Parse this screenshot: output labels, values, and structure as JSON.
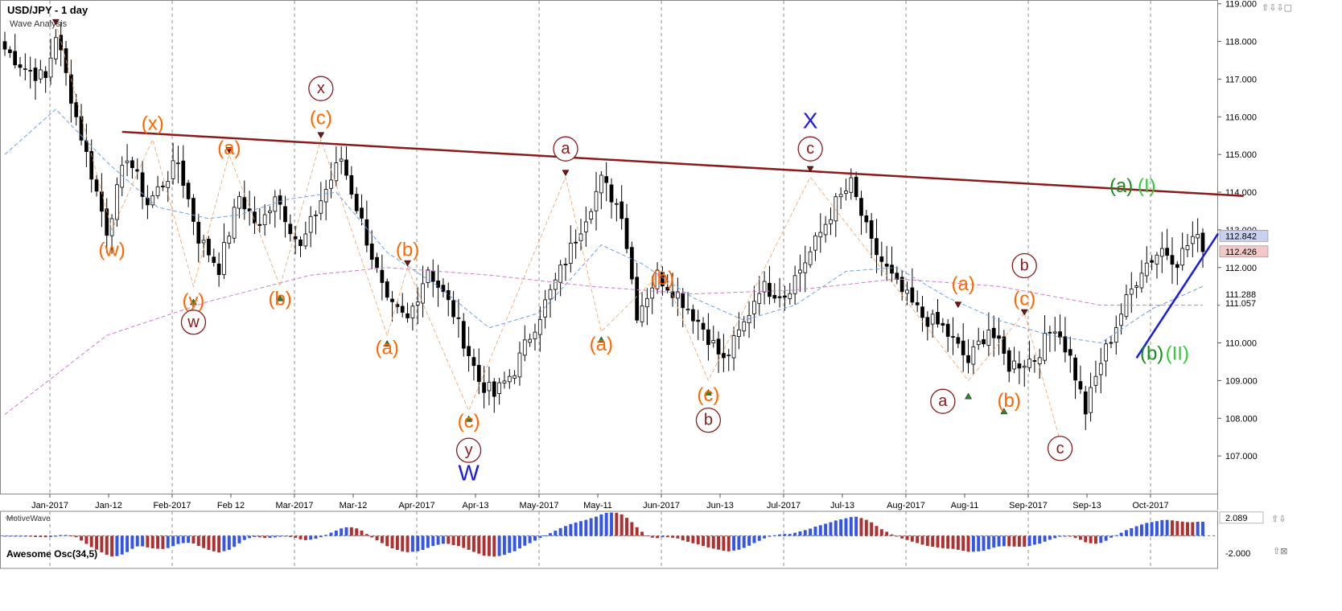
{
  "header": {
    "symbol_title": "USD/JPY - 1 day",
    "subtitle": "Wave Analysis"
  },
  "footer_brand": "MotiveWave",
  "controls": {
    "top_right": "⇧⇩⇩▢",
    "price_panel_bottom": "⇧⇩",
    "osc_panel": "⇧⊠"
  },
  "colors": {
    "bull_candle": "#ffffff",
    "bear_candle": "#000000",
    "ma_fast": "#6a9fe6",
    "ma_slow": "#d07ad0",
    "resistance": "#8b1a1a",
    "support": "#1a1ae6",
    "orange": "#ff6600",
    "darkred": "#8b1a1a",
    "blue": "#1a1ae6",
    "green": "#1a8a1a",
    "lime": "#33cc33"
  },
  "chart_data": {
    "type": "candlestick",
    "title": "USD/JPY - 1 day",
    "ylim": [
      106.0,
      119.1
    ],
    "y_ticks": [
      "107.000",
      "108.000",
      "109.000",
      "110.000",
      "111.000",
      "112.000",
      "113.000",
      "114.000",
      "115.000",
      "116.000",
      "117.000",
      "118.000",
      "119.000"
    ],
    "x_ticks": [
      "Jan-2017",
      "Jan-12",
      "Feb-2017",
      "Feb 12",
      "Mar-2017",
      "Mar-12",
      "Apr-2017",
      "Apr-13",
      "May-2017",
      "May-11",
      "Jun-2017",
      "Jun-13",
      "Jul-2017",
      "Jul-13",
      "Aug-2017",
      "Aug-11",
      "Sep-2017",
      "Sep-13",
      "Oct-2017"
    ],
    "grid": true,
    "price_labels": [
      {
        "label": "112.842",
        "price": 112.842,
        "style": "current"
      },
      {
        "label": "112.426",
        "price": 112.426,
        "style": "red"
      },
      {
        "label": "111.288",
        "price": 111.288,
        "style": "plain"
      },
      {
        "label": "111.057",
        "price": 111.057,
        "style": "plain"
      }
    ],
    "path_keypoints": [
      {
        "d": 0,
        "p": 117.8
      },
      {
        "d": 4,
        "p": 117.3
      },
      {
        "d": 8,
        "p": 117.0
      },
      {
        "d": 10,
        "p": 118.2
      },
      {
        "d": 14,
        "p": 116.0
      },
      {
        "d": 20,
        "p": 113.0
      },
      {
        "d": 24,
        "p": 115.0
      },
      {
        "d": 28,
        "p": 113.7
      },
      {
        "d": 34,
        "p": 114.8
      },
      {
        "d": 38,
        "p": 112.8
      },
      {
        "d": 42,
        "p": 112.0
      },
      {
        "d": 46,
        "p": 113.9
      },
      {
        "d": 50,
        "p": 113.0
      },
      {
        "d": 53,
        "p": 114.0
      },
      {
        "d": 58,
        "p": 112.5
      },
      {
        "d": 62,
        "p": 113.8
      },
      {
        "d": 66,
        "p": 114.9
      },
      {
        "d": 70,
        "p": 113.2
      },
      {
        "d": 75,
        "p": 111.0
      },
      {
        "d": 79,
        "p": 110.6
      },
      {
        "d": 83,
        "p": 112.0
      },
      {
        "d": 88,
        "p": 110.8
      },
      {
        "d": 93,
        "p": 109.0
      },
      {
        "d": 96,
        "p": 108.6
      },
      {
        "d": 100,
        "p": 109.3
      },
      {
        "d": 104,
        "p": 110.5
      },
      {
        "d": 108,
        "p": 111.6
      },
      {
        "d": 113,
        "p": 113.1
      },
      {
        "d": 117,
        "p": 114.3
      },
      {
        "d": 121,
        "p": 113.5
      },
      {
        "d": 124,
        "p": 110.8
      },
      {
        "d": 128,
        "p": 111.8
      },
      {
        "d": 132,
        "p": 111.3
      },
      {
        "d": 137,
        "p": 110.4
      },
      {
        "d": 141,
        "p": 109.5
      },
      {
        "d": 145,
        "p": 110.5
      },
      {
        "d": 148,
        "p": 111.5
      },
      {
        "d": 153,
        "p": 111.3
      },
      {
        "d": 158,
        "p": 112.4
      },
      {
        "d": 163,
        "p": 113.7
      },
      {
        "d": 166,
        "p": 114.2
      },
      {
        "d": 170,
        "p": 112.6
      },
      {
        "d": 175,
        "p": 111.5
      },
      {
        "d": 180,
        "p": 110.7
      },
      {
        "d": 184,
        "p": 110.4
      },
      {
        "d": 189,
        "p": 109.5
      },
      {
        "d": 193,
        "p": 110.4
      },
      {
        "d": 197,
        "p": 109.4
      },
      {
        "d": 202,
        "p": 109.6
      },
      {
        "d": 206,
        "p": 110.5
      },
      {
        "d": 209,
        "p": 109.6
      },
      {
        "d": 212,
        "p": 108.2
      },
      {
        "d": 215,
        "p": 109.5
      },
      {
        "d": 219,
        "p": 110.8
      },
      {
        "d": 223,
        "p": 112.0
      },
      {
        "d": 227,
        "p": 112.5
      },
      {
        "d": 230,
        "p": 112.2
      },
      {
        "d": 233,
        "p": 112.8
      },
      {
        "d": 235,
        "p": 112.6
      }
    ],
    "ma_fast": [
      [
        0,
        115.0
      ],
      [
        10,
        116.2
      ],
      [
        20,
        114.8
      ],
      [
        30,
        113.6
      ],
      [
        40,
        113.3
      ],
      [
        46,
        113.4
      ],
      [
        55,
        113.8
      ],
      [
        65,
        114.0
      ],
      [
        75,
        112.4
      ],
      [
        85,
        111.5
      ],
      [
        95,
        110.4
      ],
      [
        105,
        110.8
      ],
      [
        117,
        112.6
      ],
      [
        125,
        112.1
      ],
      [
        135,
        111.2
      ],
      [
        145,
        110.6
      ],
      [
        155,
        111.0
      ],
      [
        165,
        111.9
      ],
      [
        175,
        112.0
      ],
      [
        185,
        111.2
      ],
      [
        195,
        110.6
      ],
      [
        205,
        110.2
      ],
      [
        215,
        110.0
      ],
      [
        225,
        110.9
      ],
      [
        235,
        111.5
      ]
    ],
    "ma_slow": [
      [
        0,
        108.1
      ],
      [
        20,
        110.2
      ],
      [
        40,
        111.1
      ],
      [
        60,
        111.8
      ],
      [
        75,
        112.0
      ],
      [
        95,
        111.8
      ],
      [
        115,
        111.5
      ],
      [
        135,
        111.3
      ],
      [
        155,
        111.4
      ],
      [
        175,
        111.7
      ],
      [
        195,
        111.5
      ],
      [
        215,
        111.0
      ],
      [
        235,
        111.0
      ]
    ],
    "resistance_line": [
      [
        23,
        115.6
      ],
      [
        243,
        113.9
      ]
    ],
    "support_line": [
      [
        222,
        109.6
      ],
      [
        238,
        112.9
      ]
    ],
    "wave_labels": [
      {
        "t": "(w)",
        "d": 21,
        "p": 112.3,
        "c": "orange"
      },
      {
        "t": "(x)",
        "d": 29,
        "p": 115.65,
        "c": "orange"
      },
      {
        "t": "(a)",
        "d": 44,
        "p": 115.0,
        "c": "orange"
      },
      {
        "t": "(y)",
        "d": 37,
        "p": 110.95,
        "c": "orange"
      },
      {
        "t": "w",
        "d": 37,
        "p": 110.4,
        "c": "darkred",
        "circ": true
      },
      {
        "t": "(b)",
        "d": 54,
        "p": 111.0,
        "c": "orange"
      },
      {
        "t": "x",
        "d": 62,
        "p": 116.6,
        "c": "darkred",
        "circ": true
      },
      {
        "t": "(c)",
        "d": 62,
        "p": 115.8,
        "c": "orange"
      },
      {
        "t": "(b)",
        "d": 79,
        "p": 112.3,
        "c": "orange"
      },
      {
        "t": "(a)",
        "d": 75,
        "p": 109.7,
        "c": "orange"
      },
      {
        "t": "(c)",
        "d": 91,
        "p": 107.75,
        "c": "orange"
      },
      {
        "t": "y",
        "d": 91,
        "p": 107.0,
        "c": "darkred",
        "circ": true
      },
      {
        "t": "W",
        "d": 91,
        "p": 106.35,
        "c": "blue"
      },
      {
        "t": "a",
        "d": 110,
        "p": 115.0,
        "c": "darkred",
        "circ": true
      },
      {
        "t": "(b)",
        "d": 129,
        "p": 111.55,
        "c": "orange"
      },
      {
        "t": "(a)",
        "d": 117,
        "p": 109.8,
        "c": "orange"
      },
      {
        "t": "(c)",
        "d": 138,
        "p": 108.45,
        "c": "orange"
      },
      {
        "t": "b",
        "d": 138,
        "p": 107.8,
        "c": "darkred",
        "circ": true
      },
      {
        "t": "X",
        "d": 158,
        "p": 115.7,
        "c": "blue"
      },
      {
        "t": "c",
        "d": 158,
        "p": 115.0,
        "c": "darkred",
        "circ": true
      },
      {
        "t": "(a)",
        "d": 188,
        "p": 111.4,
        "c": "orange"
      },
      {
        "t": "a",
        "d": 184,
        "p": 108.3,
        "c": "darkred",
        "circ": true
      },
      {
        "t": "b",
        "d": 200,
        "p": 111.9,
        "c": "darkred",
        "circ": true
      },
      {
        "t": "(c)",
        "d": 200,
        "p": 111.0,
        "c": "orange"
      },
      {
        "t": "(b)",
        "d": 197,
        "p": 108.3,
        "c": "orange"
      },
      {
        "t": "c",
        "d": 207,
        "p": 107.05,
        "c": "darkred",
        "circ": true
      },
      {
        "t": "(a)",
        "d": 219,
        "p": 114.0,
        "c": "green"
      },
      {
        "t": "(I)",
        "d": 224,
        "p": 114.0,
        "c": "lime"
      },
      {
        "t": "(b)",
        "d": 225,
        "p": 109.55,
        "c": "green"
      },
      {
        "t": "(II)",
        "d": 230,
        "p": 109.55,
        "c": "lime"
      }
    ],
    "markers": [
      {
        "d": 10,
        "p": 118.5,
        "up": false
      },
      {
        "d": 37,
        "p": 111.1,
        "up": true
      },
      {
        "d": 44,
        "p": 115.1,
        "up": false
      },
      {
        "d": 54,
        "p": 111.2,
        "up": true
      },
      {
        "d": 62,
        "p": 115.5,
        "up": false
      },
      {
        "d": 75,
        "p": 110.0,
        "up": true
      },
      {
        "d": 79,
        "p": 112.1,
        "up": false
      },
      {
        "d": 91,
        "p": 108.0,
        "up": true
      },
      {
        "d": 110,
        "p": 114.5,
        "up": false
      },
      {
        "d": 117,
        "p": 110.1,
        "up": true
      },
      {
        "d": 138,
        "p": 108.7,
        "up": true
      },
      {
        "d": 158,
        "p": 114.6,
        "up": false
      },
      {
        "d": 187,
        "p": 111.0,
        "up": false
      },
      {
        "d": 189,
        "p": 108.6,
        "up": true
      },
      {
        "d": 196,
        "p": 108.2,
        "up": true
      },
      {
        "d": 200,
        "p": 110.8,
        "up": false
      },
      {
        "d": 207,
        "p": 107.3,
        "up": true
      }
    ],
    "oscillator": {
      "name": "Awesome Osc(34,5)",
      "ticks": [
        "2.089",
        "-2.000"
      ],
      "ylim": [
        -3.0,
        3.0
      ]
    }
  }
}
